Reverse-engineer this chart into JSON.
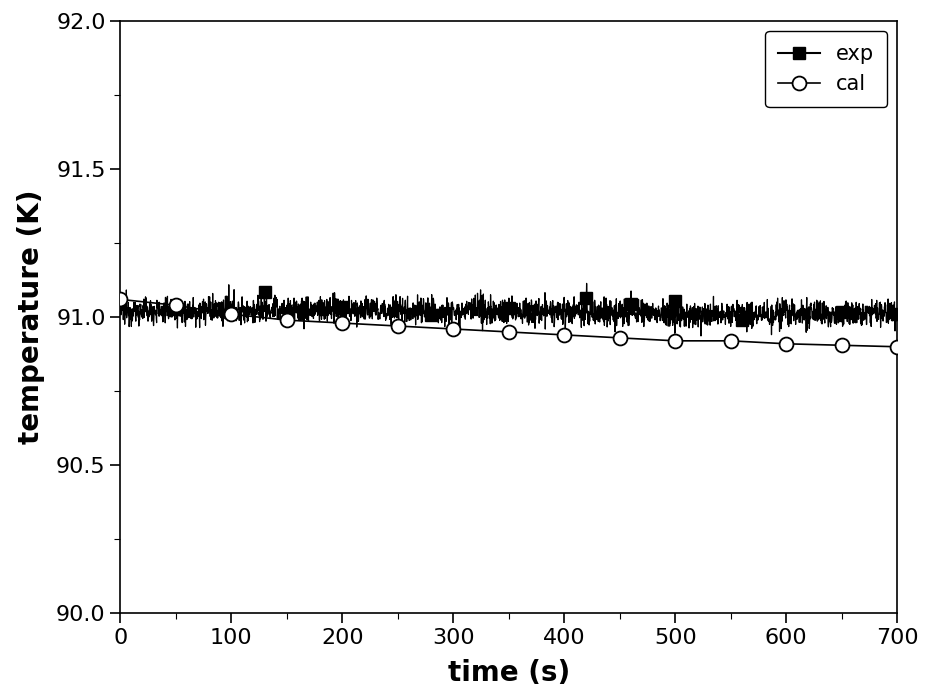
{
  "xlim": [
    0,
    700
  ],
  "ylim": [
    90.0,
    92.0
  ],
  "xlabel": "time (s)",
  "ylabel": "temperature (K)",
  "xlabel_fontsize": 20,
  "ylabel_fontsize": 20,
  "tick_fontsize": 16,
  "legend_labels": [
    "exp",
    "cal"
  ],
  "exp_color": "#000000",
  "cal_color": "#000000",
  "background_color": "#ffffff",
  "xticks": [
    0,
    100,
    200,
    300,
    400,
    500,
    600,
    700
  ],
  "yticks": [
    90.0,
    90.5,
    91.0,
    91.5,
    92.0
  ],
  "cal_x": [
    0,
    50,
    100,
    150,
    200,
    250,
    300,
    350,
    400,
    450,
    500,
    550,
    600,
    650,
    700
  ],
  "cal_y": [
    91.06,
    91.04,
    91.01,
    90.99,
    90.98,
    90.97,
    90.96,
    90.95,
    90.94,
    90.93,
    90.92,
    90.92,
    90.91,
    90.905,
    90.9
  ],
  "exp_sq_x": [
    50,
    130,
    200,
    280,
    350,
    420,
    460,
    500,
    560,
    650,
    700
  ],
  "exp_noise_seed": 12345,
  "exp_noise_std": 0.022,
  "exp_base": 91.02,
  "exp_spike_locs": [
    130,
    420,
    460
  ]
}
